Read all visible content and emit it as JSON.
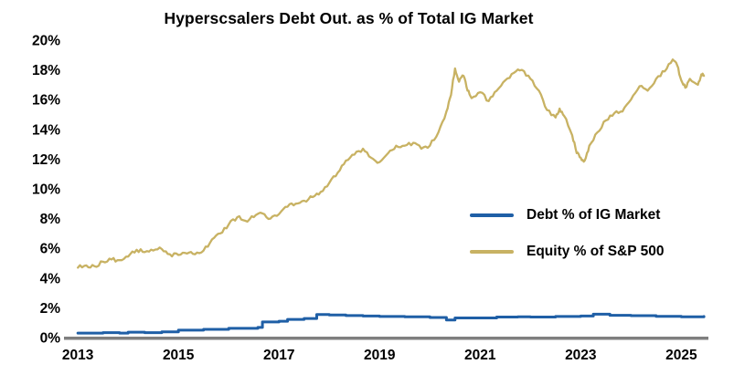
{
  "title": "Hyperscsalers Debt Out. as % of Total IG Market",
  "legend": {
    "debt_label": "Debt % of IG Market",
    "equity_label": "Equity % of S&P 500"
  },
  "colors": {
    "debt_line": "#1F5FA6",
    "equity_line": "#C8B263",
    "axis_line": "#7F7F7F",
    "text": "#000000",
    "background": "#FFFFFF"
  },
  "chart_data": {
    "type": "line",
    "title": "Hyperscsalers Debt Out. as % of Total IG Market",
    "xlabel": "",
    "ylabel": "",
    "xlim": [
      2012.87,
      2025.63
    ],
    "ylim": [
      0,
      20
    ],
    "grid": false,
    "legend_position": "center-right",
    "x_ticks": [
      2013,
      2015,
      2017,
      2019,
      2021,
      2023,
      2025
    ],
    "x_tick_labels": [
      "2013",
      "2015",
      "2017",
      "2019",
      "2021",
      "2023",
      "2025"
    ],
    "y_ticks": [
      0,
      2,
      4,
      6,
      8,
      10,
      12,
      14,
      16,
      18,
      20
    ],
    "y_tick_labels": [
      "0%",
      "2%",
      "4%",
      "6%",
      "8%",
      "10%",
      "12%",
      "14%",
      "16%",
      "18%",
      "20%"
    ],
    "series": [
      {
        "name": "Debt % of IG Market",
        "color": "#1F5FA6",
        "style": "step",
        "stroke_width": 3,
        "points": [
          [
            2013.0,
            0.3
          ],
          [
            2013.5,
            0.33
          ],
          [
            2013.83,
            0.3
          ],
          [
            2014.0,
            0.36
          ],
          [
            2014.33,
            0.33
          ],
          [
            2014.67,
            0.38
          ],
          [
            2015.0,
            0.5
          ],
          [
            2015.5,
            0.55
          ],
          [
            2016.0,
            0.62
          ],
          [
            2016.58,
            0.68
          ],
          [
            2016.67,
            1.05
          ],
          [
            2017.0,
            1.1
          ],
          [
            2017.17,
            1.22
          ],
          [
            2017.5,
            1.28
          ],
          [
            2017.75,
            1.55
          ],
          [
            2018.0,
            1.52
          ],
          [
            2018.33,
            1.48
          ],
          [
            2018.67,
            1.45
          ],
          [
            2019.0,
            1.42
          ],
          [
            2019.5,
            1.4
          ],
          [
            2020.0,
            1.35
          ],
          [
            2020.33,
            1.18
          ],
          [
            2020.5,
            1.32
          ],
          [
            2021.0,
            1.32
          ],
          [
            2021.33,
            1.38
          ],
          [
            2021.75,
            1.4
          ],
          [
            2022.0,
            1.38
          ],
          [
            2022.5,
            1.42
          ],
          [
            2023.0,
            1.45
          ],
          [
            2023.25,
            1.57
          ],
          [
            2023.58,
            1.5
          ],
          [
            2024.0,
            1.47
          ],
          [
            2024.5,
            1.43
          ],
          [
            2025.0,
            1.4
          ],
          [
            2025.45,
            1.42
          ]
        ]
      },
      {
        "name": "Equity % of S&P 500",
        "color": "#C8B263",
        "style": "noisy",
        "noise": 0.13,
        "stroke_width": 2.3,
        "points": [
          [
            2013.0,
            4.7
          ],
          [
            2013.17,
            4.85
          ],
          [
            2013.33,
            4.8
          ],
          [
            2013.5,
            5.1
          ],
          [
            2013.67,
            5.25
          ],
          [
            2013.83,
            5.2
          ],
          [
            2014.0,
            5.45
          ],
          [
            2014.17,
            5.9
          ],
          [
            2014.33,
            5.75
          ],
          [
            2014.5,
            5.85
          ],
          [
            2014.67,
            5.95
          ],
          [
            2014.83,
            5.6
          ],
          [
            2015.0,
            5.55
          ],
          [
            2015.17,
            5.65
          ],
          [
            2015.33,
            5.6
          ],
          [
            2015.5,
            5.85
          ],
          [
            2015.67,
            6.6
          ],
          [
            2015.83,
            7.0
          ],
          [
            2016.0,
            7.6
          ],
          [
            2016.17,
            8.1
          ],
          [
            2016.33,
            7.85
          ],
          [
            2016.5,
            8.1
          ],
          [
            2016.67,
            8.35
          ],
          [
            2016.83,
            8.0
          ],
          [
            2017.0,
            8.3
          ],
          [
            2017.17,
            8.8
          ],
          [
            2017.33,
            9.0
          ],
          [
            2017.5,
            9.2
          ],
          [
            2017.67,
            9.45
          ],
          [
            2017.83,
            9.8
          ],
          [
            2018.0,
            10.4
          ],
          [
            2018.17,
            11.1
          ],
          [
            2018.33,
            11.9
          ],
          [
            2018.5,
            12.3
          ],
          [
            2018.67,
            12.7
          ],
          [
            2018.83,
            12.1
          ],
          [
            2019.0,
            11.8
          ],
          [
            2019.17,
            12.4
          ],
          [
            2019.33,
            12.9
          ],
          [
            2019.5,
            12.9
          ],
          [
            2019.67,
            13.1
          ],
          [
            2019.83,
            12.7
          ],
          [
            2020.0,
            12.9
          ],
          [
            2020.17,
            13.8
          ],
          [
            2020.33,
            15.2
          ],
          [
            2020.42,
            16.3
          ],
          [
            2020.5,
            18.1
          ],
          [
            2020.58,
            17.2
          ],
          [
            2020.67,
            17.6
          ],
          [
            2020.75,
            16.6
          ],
          [
            2020.83,
            16.1
          ],
          [
            2021.0,
            16.5
          ],
          [
            2021.17,
            15.9
          ],
          [
            2021.33,
            16.6
          ],
          [
            2021.5,
            17.3
          ],
          [
            2021.67,
            17.8
          ],
          [
            2021.83,
            18.0
          ],
          [
            2022.0,
            17.4
          ],
          [
            2022.17,
            16.6
          ],
          [
            2022.33,
            15.3
          ],
          [
            2022.5,
            14.8
          ],
          [
            2022.58,
            15.4
          ],
          [
            2022.67,
            14.9
          ],
          [
            2022.83,
            13.6
          ],
          [
            2022.92,
            12.4
          ],
          [
            2023.0,
            12.1
          ],
          [
            2023.08,
            11.9
          ],
          [
            2023.17,
            12.9
          ],
          [
            2023.33,
            13.8
          ],
          [
            2023.5,
            14.6
          ],
          [
            2023.67,
            15.1
          ],
          [
            2023.83,
            15.2
          ],
          [
            2024.0,
            16.0
          ],
          [
            2024.17,
            16.9
          ],
          [
            2024.33,
            16.6
          ],
          [
            2024.5,
            17.4
          ],
          [
            2024.67,
            17.9
          ],
          [
            2024.83,
            18.7
          ],
          [
            2024.92,
            18.3
          ],
          [
            2025.0,
            17.3
          ],
          [
            2025.08,
            16.8
          ],
          [
            2025.17,
            17.4
          ],
          [
            2025.33,
            17.0
          ],
          [
            2025.4,
            17.7
          ],
          [
            2025.45,
            17.6
          ]
        ]
      }
    ]
  }
}
